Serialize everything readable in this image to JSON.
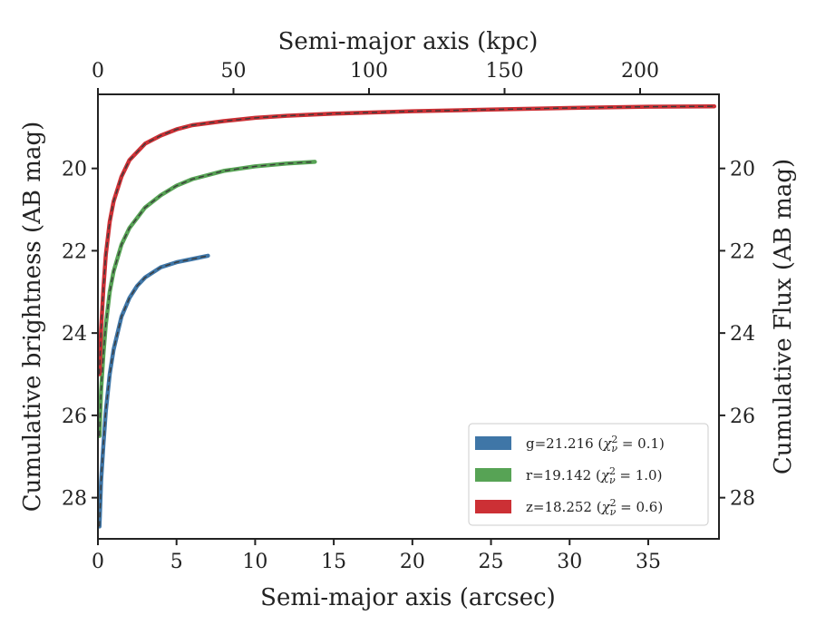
{
  "chart_data": {
    "type": "line",
    "xlabel": "Semi-major axis (arcsec)",
    "x2label": "Semi-major axis (kpc)",
    "ylabel": "Cumulative brightness (AB mag)",
    "y2label": "Cumulative Flux (AB mag)",
    "xlim": [
      0,
      39.5
    ],
    "x2lim": [
      0,
      229.1
    ],
    "ylim": [
      29.0,
      18.2
    ],
    "inverted_y": true,
    "grid": false,
    "legend_position": "lower-right",
    "x_ticks": [
      "0",
      "5",
      "10",
      "15",
      "20",
      "25",
      "30",
      "35"
    ],
    "x_tick_values": [
      0,
      5,
      10,
      15,
      20,
      25,
      30,
      35
    ],
    "x2_ticks": [
      "0",
      "50",
      "100",
      "150",
      "200"
    ],
    "x2_tick_values": [
      0,
      50,
      100,
      150,
      200
    ],
    "y_ticks": [
      "20",
      "22",
      "24",
      "26",
      "28"
    ],
    "y_tick_values": [
      20,
      22,
      24,
      26,
      28
    ],
    "series": [
      {
        "name": "g=21.216 (χ²ᵥ = 0.1)",
        "label_main": "g=21.216 (",
        "label_sym": "χ",
        "label_sup": "2",
        "label_sub": "ν",
        "label_rest": " = 0.1)",
        "color": "#3f76a7",
        "x": [
          0.1,
          0.2,
          0.35,
          0.5,
          0.75,
          1.0,
          1.5,
          2.0,
          2.5,
          3.0,
          4.0,
          5.0,
          6.0,
          7.0
        ],
        "y": [
          28.7,
          27.6,
          26.7,
          25.9,
          25.0,
          24.4,
          23.6,
          23.15,
          22.85,
          22.65,
          22.4,
          22.28,
          22.2,
          22.12
        ]
      },
      {
        "name": "r=19.142 (χ²ᵥ = 1.0)",
        "label_main": "r=19.142 (",
        "label_sym": "χ",
        "label_sup": "2",
        "label_sub": "ν",
        "label_rest": " = 1.0)",
        "color": "#57a355",
        "x": [
          0.1,
          0.2,
          0.35,
          0.5,
          0.75,
          1.0,
          1.5,
          2.0,
          3.0,
          4.0,
          5.0,
          6.0,
          8.0,
          10.0,
          12.0,
          13.8
        ],
        "y": [
          26.5,
          25.4,
          24.5,
          23.8,
          23.0,
          22.5,
          21.85,
          21.45,
          20.95,
          20.65,
          20.42,
          20.26,
          20.06,
          19.95,
          19.88,
          19.84
        ]
      },
      {
        "name": "z=18.252 (χ²ᵥ = 0.6)",
        "label_main": "z=18.252 (",
        "label_sym": "χ",
        "label_sup": "2",
        "label_sub": "ν",
        "label_rest": " = 0.6)",
        "color": "#cc3035",
        "x": [
          0.1,
          0.2,
          0.35,
          0.5,
          0.75,
          1.0,
          1.5,
          2.0,
          3.0,
          4.0,
          5.0,
          6.0,
          8.0,
          10.0,
          12.0,
          15.0,
          20.0,
          25.0,
          30.0,
          35.0,
          39.2
        ],
        "y": [
          25.0,
          23.9,
          22.9,
          22.1,
          21.3,
          20.8,
          20.2,
          19.8,
          19.4,
          19.2,
          19.05,
          18.95,
          18.85,
          18.77,
          18.72,
          18.67,
          18.61,
          18.57,
          18.53,
          18.5,
          18.49
        ]
      }
    ]
  }
}
